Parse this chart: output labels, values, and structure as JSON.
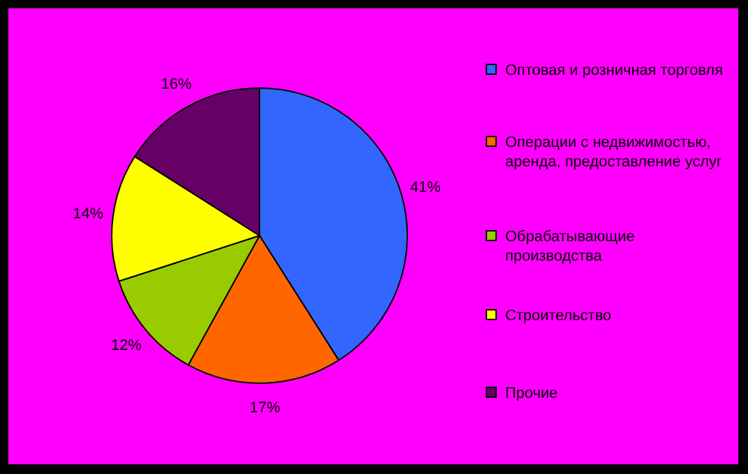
{
  "chart_data": {
    "type": "pie",
    "categories": [
      "Оптовая и розничная торговля",
      "Операции с недвижимостью, аренда, предоставление услуг",
      "Обрабатывающие производства",
      "Строительство",
      "Прочие"
    ],
    "values": [
      41,
      17,
      12,
      14,
      16
    ],
    "colors": [
      "#3366ff",
      "#ff6600",
      "#99cc00",
      "#ffff00",
      "#660066"
    ],
    "value_labels": [
      "41%",
      "17%",
      "12%",
      "14%",
      "16%"
    ],
    "legend": "right"
  }
}
